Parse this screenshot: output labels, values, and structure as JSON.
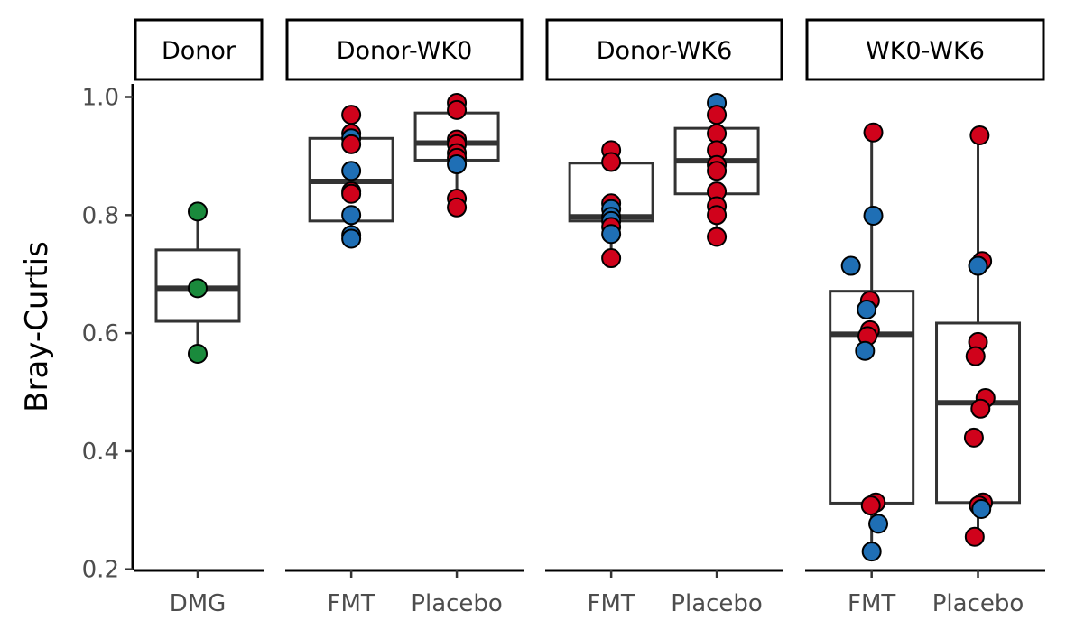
{
  "chart_data": {
    "type": "box",
    "ylabel": "Bray-Curtis",
    "ylim": [
      0.2,
      1.0
    ],
    "yticks": [
      "0.2",
      "0.4",
      "0.6",
      "0.8",
      "1.0"
    ],
    "ytick_values": [
      0.2,
      0.4,
      0.6,
      0.8,
      1.0
    ],
    "grid": false,
    "legend": "none",
    "colors": {
      "DMG": "#1a8a3c",
      "FMT": "#1f6fb5",
      "Placebo": "#d0021b",
      "box": "#333333"
    },
    "panels": [
      {
        "strip": "Donor",
        "groups": [
          {
            "category": "DMG",
            "box": {
              "q1": 0.62,
              "median": 0.676,
              "q3": 0.741,
              "lower": 0.565,
              "upper": 0.806
            },
            "points": [
              {
                "y": 0.806,
                "color": "DMG",
                "dx": 0
              },
              {
                "y": 0.676,
                "color": "DMG",
                "dx": 0
              },
              {
                "y": 0.565,
                "color": "DMG",
                "dx": 0
              }
            ]
          }
        ]
      },
      {
        "strip": "Donor-WK0",
        "groups": [
          {
            "category": "FMT",
            "box": {
              "q1": 0.79,
              "median": 0.857,
              "q3": 0.93,
              "lower": 0.76,
              "upper": 0.97
            },
            "points": [
              {
                "y": 0.97,
                "color": "Placebo",
                "dx": 0
              },
              {
                "y": 0.938,
                "color": "Placebo",
                "dx": 0
              },
              {
                "y": 0.93,
                "color": "FMT",
                "dx": 0
              },
              {
                "y": 0.92,
                "color": "Placebo",
                "dx": 0
              },
              {
                "y": 0.875,
                "color": "FMT",
                "dx": 0
              },
              {
                "y": 0.84,
                "color": "Placebo",
                "dx": 0
              },
              {
                "y": 0.836,
                "color": "Placebo",
                "dx": 0
              },
              {
                "y": 0.8,
                "color": "FMT",
                "dx": 0
              },
              {
                "y": 0.766,
                "color": "FMT",
                "dx": 0
              },
              {
                "y": 0.76,
                "color": "FMT",
                "dx": 0
              }
            ]
          },
          {
            "category": "Placebo",
            "box": {
              "q1": 0.893,
              "median": 0.922,
              "q3": 0.973,
              "lower": 0.813,
              "upper": 0.99
            },
            "points": [
              {
                "y": 0.99,
                "color": "Placebo",
                "dx": 0
              },
              {
                "y": 0.978,
                "color": "Placebo",
                "dx": 0
              },
              {
                "y": 0.928,
                "color": "Placebo",
                "dx": 0
              },
              {
                "y": 0.92,
                "color": "Placebo",
                "dx": 0
              },
              {
                "y": 0.905,
                "color": "Placebo",
                "dx": 0
              },
              {
                "y": 0.897,
                "color": "Placebo",
                "dx": 0
              },
              {
                "y": 0.886,
                "color": "FMT",
                "dx": 0
              },
              {
                "y": 0.828,
                "color": "Placebo",
                "dx": 0
              },
              {
                "y": 0.813,
                "color": "Placebo",
                "dx": 0
              }
            ]
          }
        ]
      },
      {
        "strip": "Donor-WK6",
        "groups": [
          {
            "category": "FMT",
            "box": {
              "q1": 0.79,
              "median": 0.797,
              "q3": 0.888,
              "lower": 0.727,
              "upper": 0.91
            },
            "points": [
              {
                "y": 0.91,
                "color": "Placebo",
                "dx": 0
              },
              {
                "y": 0.89,
                "color": "Placebo",
                "dx": 0
              },
              {
                "y": 0.82,
                "color": "Placebo",
                "dx": 0
              },
              {
                "y": 0.81,
                "color": "FMT",
                "dx": 0
              },
              {
                "y": 0.797,
                "color": "FMT",
                "dx": 0
              },
              {
                "y": 0.79,
                "color": "FMT",
                "dx": 0
              },
              {
                "y": 0.78,
                "color": "Placebo",
                "dx": 0
              },
              {
                "y": 0.768,
                "color": "FMT",
                "dx": 0
              },
              {
                "y": 0.727,
                "color": "Placebo",
                "dx": 0
              }
            ]
          },
          {
            "category": "Placebo",
            "box": {
              "q1": 0.836,
              "median": 0.892,
              "q3": 0.947,
              "lower": 0.763,
              "upper": 0.99
            },
            "points": [
              {
                "y": 0.99,
                "color": "FMT",
                "dx": 0
              },
              {
                "y": 0.97,
                "color": "Placebo",
                "dx": 0
              },
              {
                "y": 0.938,
                "color": "Placebo",
                "dx": 0
              },
              {
                "y": 0.91,
                "color": "Placebo",
                "dx": 0
              },
              {
                "y": 0.885,
                "color": "Placebo",
                "dx": 0
              },
              {
                "y": 0.875,
                "color": "Placebo",
                "dx": 0
              },
              {
                "y": 0.84,
                "color": "Placebo",
                "dx": 0
              },
              {
                "y": 0.815,
                "color": "Placebo",
                "dx": 0
              },
              {
                "y": 0.8,
                "color": "Placebo",
                "dx": 0
              },
              {
                "y": 0.763,
                "color": "Placebo",
                "dx": 0
              }
            ]
          }
        ]
      },
      {
        "strip": "WK0-WK6",
        "groups": [
          {
            "category": "FMT",
            "box": {
              "q1": 0.312,
              "median": 0.598,
              "q3": 0.671,
              "lower": 0.23,
              "upper": 0.94
            },
            "points": [
              {
                "y": 0.94,
                "color": "Placebo",
                "dx": 0.02
              },
              {
                "y": 0.799,
                "color": "FMT",
                "dx": 0.02
              },
              {
                "y": 0.714,
                "color": "FMT",
                "dx": -0.25
              },
              {
                "y": 0.655,
                "color": "Placebo",
                "dx": -0.02
              },
              {
                "y": 0.64,
                "color": "FMT",
                "dx": -0.06
              },
              {
                "y": 0.605,
                "color": "Placebo",
                "dx": -0.02
              },
              {
                "y": 0.595,
                "color": "Placebo",
                "dx": -0.05
              },
              {
                "y": 0.57,
                "color": "FMT",
                "dx": -0.08
              },
              {
                "y": 0.313,
                "color": "Placebo",
                "dx": 0.05
              },
              {
                "y": 0.308,
                "color": "Placebo",
                "dx": -0.01
              },
              {
                "y": 0.277,
                "color": "FMT",
                "dx": 0.08
              },
              {
                "y": 0.23,
                "color": "FMT",
                "dx": 0
              }
            ]
          },
          {
            "category": "Placebo",
            "box": {
              "q1": 0.313,
              "median": 0.482,
              "q3": 0.617,
              "lower": 0.255,
              "upper": 0.935
            },
            "points": [
              {
                "y": 0.935,
                "color": "Placebo",
                "dx": 0.02
              },
              {
                "y": 0.722,
                "color": "Placebo",
                "dx": 0.05
              },
              {
                "y": 0.714,
                "color": "FMT",
                "dx": 0.0
              },
              {
                "y": 0.585,
                "color": "Placebo",
                "dx": 0.0
              },
              {
                "y": 0.561,
                "color": "Placebo",
                "dx": -0.03
              },
              {
                "y": 0.49,
                "color": "Placebo",
                "dx": 0.09
              },
              {
                "y": 0.472,
                "color": "Placebo",
                "dx": 0.03
              },
              {
                "y": 0.423,
                "color": "Placebo",
                "dx": -0.05
              },
              {
                "y": 0.313,
                "color": "Placebo",
                "dx": 0.06
              },
              {
                "y": 0.308,
                "color": "Placebo",
                "dx": 0.01
              },
              {
                "y": 0.302,
                "color": "FMT",
                "dx": 0.04
              },
              {
                "y": 0.255,
                "color": "Placebo",
                "dx": -0.04
              }
            ]
          }
        ]
      }
    ]
  }
}
